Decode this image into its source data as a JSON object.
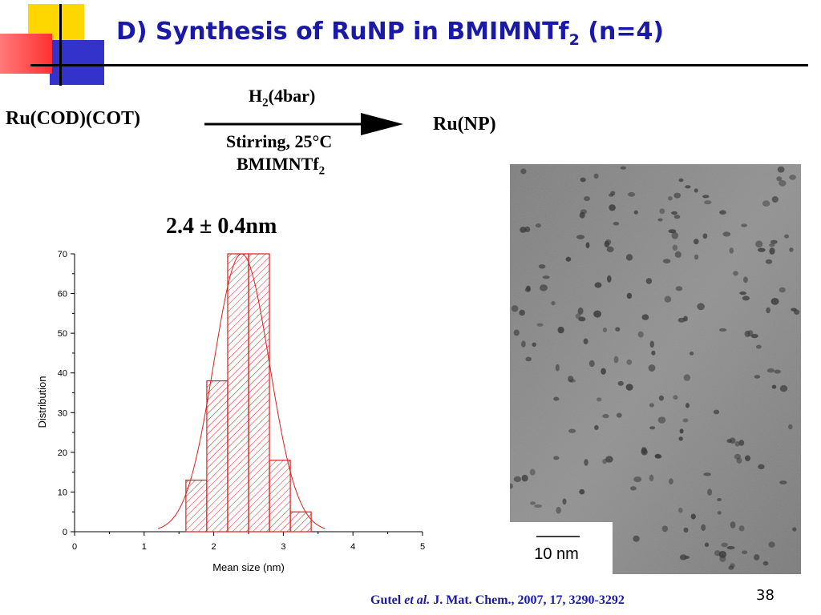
{
  "slide": {
    "title_prefix": "D) Synthesis of RuNP in BMIMNTf",
    "title_sub": "2",
    "title_suffix": " (n=4)",
    "page_number": "38"
  },
  "reaction": {
    "reactant": "Ru(COD)(COT)",
    "product": "Ru(NP)",
    "above_arrow_prefix": "H",
    "above_arrow_sub": "2",
    "above_arrow_suffix": "(4bar)",
    "below_arrow_line1": "Stirring, 25°C",
    "below_arrow_line2_prefix": "BMIMNTf",
    "below_arrow_line2_sub": "2"
  },
  "mean_size_label": "2.4 ± 0.4nm",
  "micrograph": {
    "scale_bar_label": "10 nm"
  },
  "citation": {
    "author": "Gutel ",
    "etal": "et al.",
    "ref": " J. Mat. Chem., 2007, 17, 3290-3292"
  },
  "chart_data": {
    "type": "bar",
    "xlabel": "Mean size (nm)",
    "ylabel": "Distribution",
    "xlim": [
      0,
      5
    ],
    "ylim": [
      0,
      70
    ],
    "xticks": [
      0,
      1,
      2,
      3,
      4,
      5
    ],
    "yticks": [
      0,
      10,
      20,
      30,
      40,
      50,
      60,
      70
    ],
    "bins": [
      {
        "x0": 1.6,
        "x1": 1.9,
        "value": 13
      },
      {
        "x0": 1.9,
        "x1": 2.2,
        "value": 38
      },
      {
        "x0": 2.2,
        "x1": 2.5,
        "value": 70
      },
      {
        "x0": 2.5,
        "x1": 2.8,
        "value": 70
      },
      {
        "x0": 2.8,
        "x1": 3.1,
        "value": 18
      },
      {
        "x0": 3.1,
        "x1": 3.4,
        "value": 5
      }
    ],
    "fit": {
      "type": "gaussian",
      "mean": 2.4,
      "sigma": 0.4,
      "peak": 70
    },
    "color": "#d82020"
  }
}
